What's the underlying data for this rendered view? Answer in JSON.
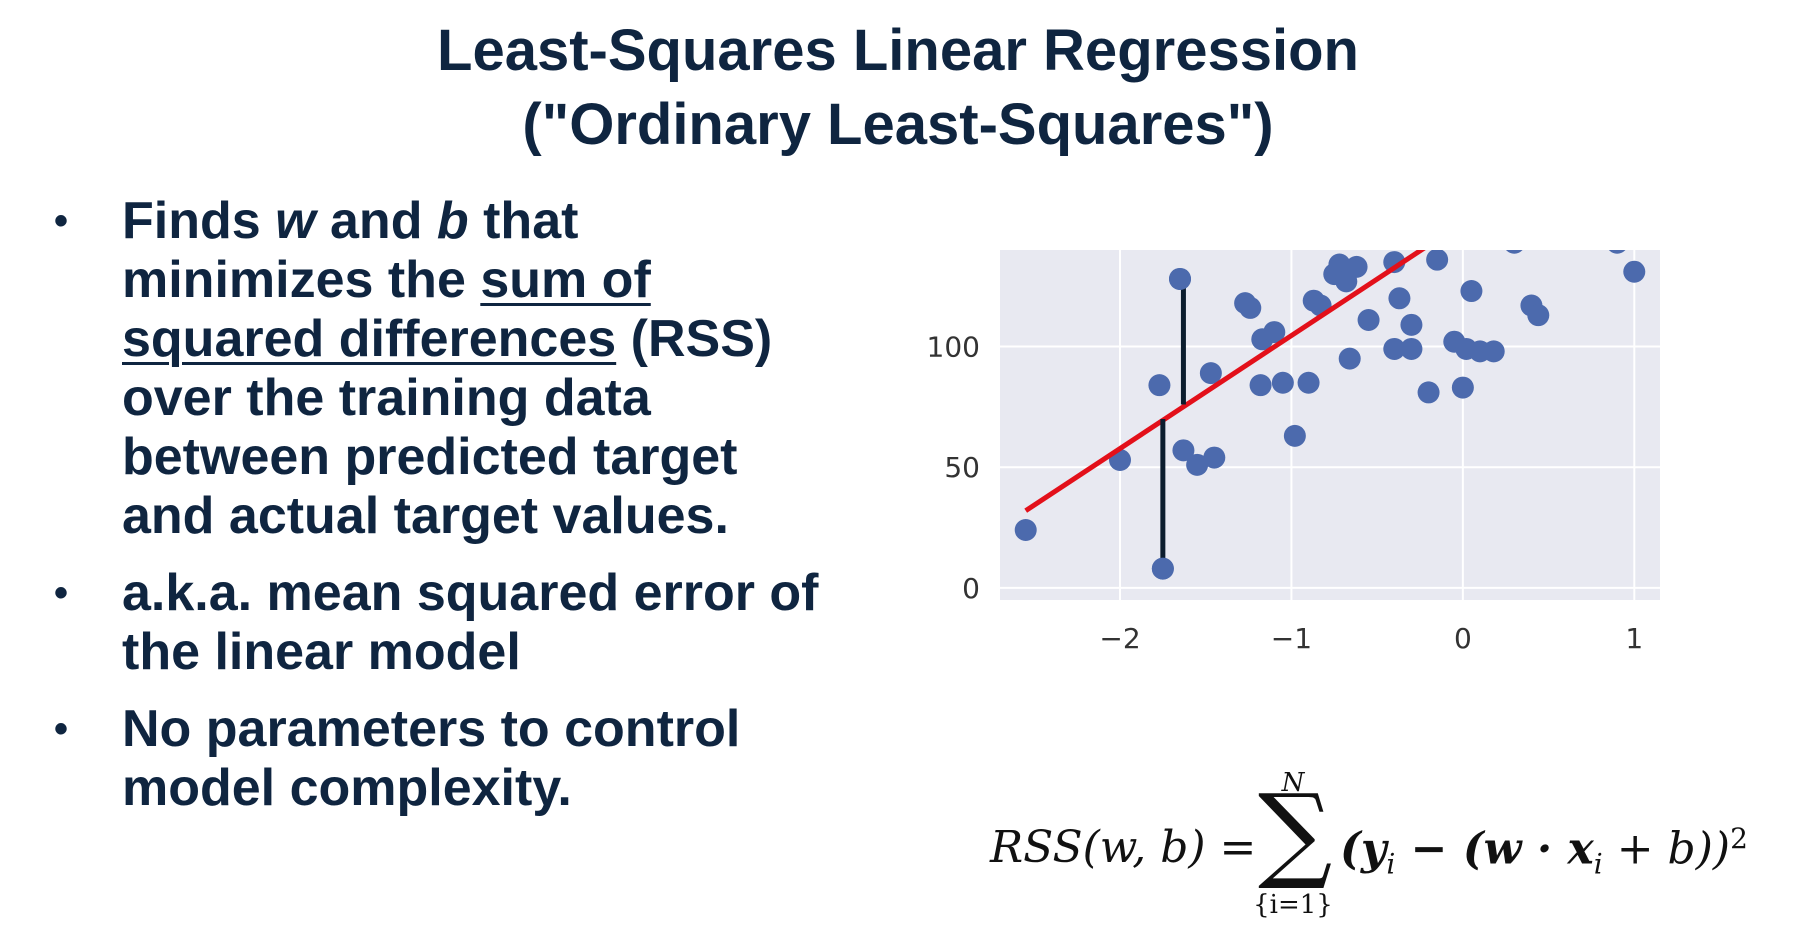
{
  "title": {
    "line1": "Least-Squares Linear Regression",
    "line2": "(\"Ordinary Least-Squares\")"
  },
  "bullets": [
    {
      "marker": "•",
      "parts": [
        "Finds ",
        "w",
        " and ",
        "b",
        " that minimizes the ",
        "sum of squared differences",
        " (RSS) over the training data between predicted target and actual target values."
      ]
    },
    {
      "marker": "•",
      "text": "a.k.a. mean squared error of the linear model"
    },
    {
      "marker": "•",
      "text": "No parameters to control model complexity."
    }
  ],
  "formula": {
    "lhs": "RSS(w, b) =",
    "sum_upper": "N",
    "sum_lower": "{i=1}",
    "rhs_open": "(y",
    "rhs_sub_i1": "i",
    "rhs_mid": " − (w · x",
    "rhs_sub_i2": "i",
    "rhs_close": " + b))",
    "rhs_exp": "2"
  },
  "chart_data": {
    "type": "scatter",
    "xlim": [
      -2.7,
      1.15
    ],
    "ylim": [
      -5,
      140
    ],
    "x_ticks": [
      "−2",
      "−1",
      "0",
      "1"
    ],
    "x_tick_values": [
      -2,
      -1,
      0,
      1
    ],
    "y_ticks": [
      "0",
      "50",
      "100"
    ],
    "y_tick_values": [
      0,
      50,
      100
    ],
    "grid": true,
    "background": "#e8e9f1",
    "point_color": "#4c6aad",
    "line_color": "#e3101a",
    "residual_color": "#0c1d2e",
    "points": [
      [
        -2.55,
        24
      ],
      [
        -2.0,
        53
      ],
      [
        -1.75,
        8
      ],
      [
        -1.77,
        84
      ],
      [
        -1.65,
        128
      ],
      [
        -1.63,
        57
      ],
      [
        -1.55,
        51
      ],
      [
        -1.45,
        54
      ],
      [
        -1.47,
        89
      ],
      [
        -1.27,
        118
      ],
      [
        -1.24,
        116
      ],
      [
        -1.18,
        84
      ],
      [
        -1.17,
        103
      ],
      [
        -1.1,
        106
      ],
      [
        -1.05,
        85
      ],
      [
        -0.98,
        63
      ],
      [
        -0.9,
        85
      ],
      [
        -0.87,
        119
      ],
      [
        -0.83,
        117
      ],
      [
        -0.75,
        130
      ],
      [
        -0.72,
        134
      ],
      [
        -0.68,
        127
      ],
      [
        -0.66,
        95
      ],
      [
        -0.62,
        133
      ],
      [
        -0.55,
        111
      ],
      [
        -0.4,
        99
      ],
      [
        -0.4,
        135
      ],
      [
        -0.37,
        120
      ],
      [
        -0.3,
        109
      ],
      [
        -0.3,
        99
      ],
      [
        -0.2,
        81
      ],
      [
        -0.15,
        136
      ],
      [
        0.0,
        83
      ],
      [
        -0.05,
        102
      ],
      [
        0.05,
        123
      ],
      [
        0.02,
        99
      ],
      [
        0.1,
        98
      ],
      [
        0.18,
        98
      ],
      [
        0.4,
        117
      ],
      [
        0.44,
        113
      ],
      [
        0.3,
        143
      ],
      [
        0.9,
        143
      ],
      [
        1.0,
        131
      ]
    ],
    "fit_line": {
      "x1": -2.55,
      "y1": 32,
      "x2": -0.2,
      "y2": 142
    },
    "residual_lines": [
      {
        "x": -1.75,
        "y1": 8,
        "y2": 70
      },
      {
        "x": -1.63,
        "y1": 76,
        "y2": 128
      }
    ]
  }
}
